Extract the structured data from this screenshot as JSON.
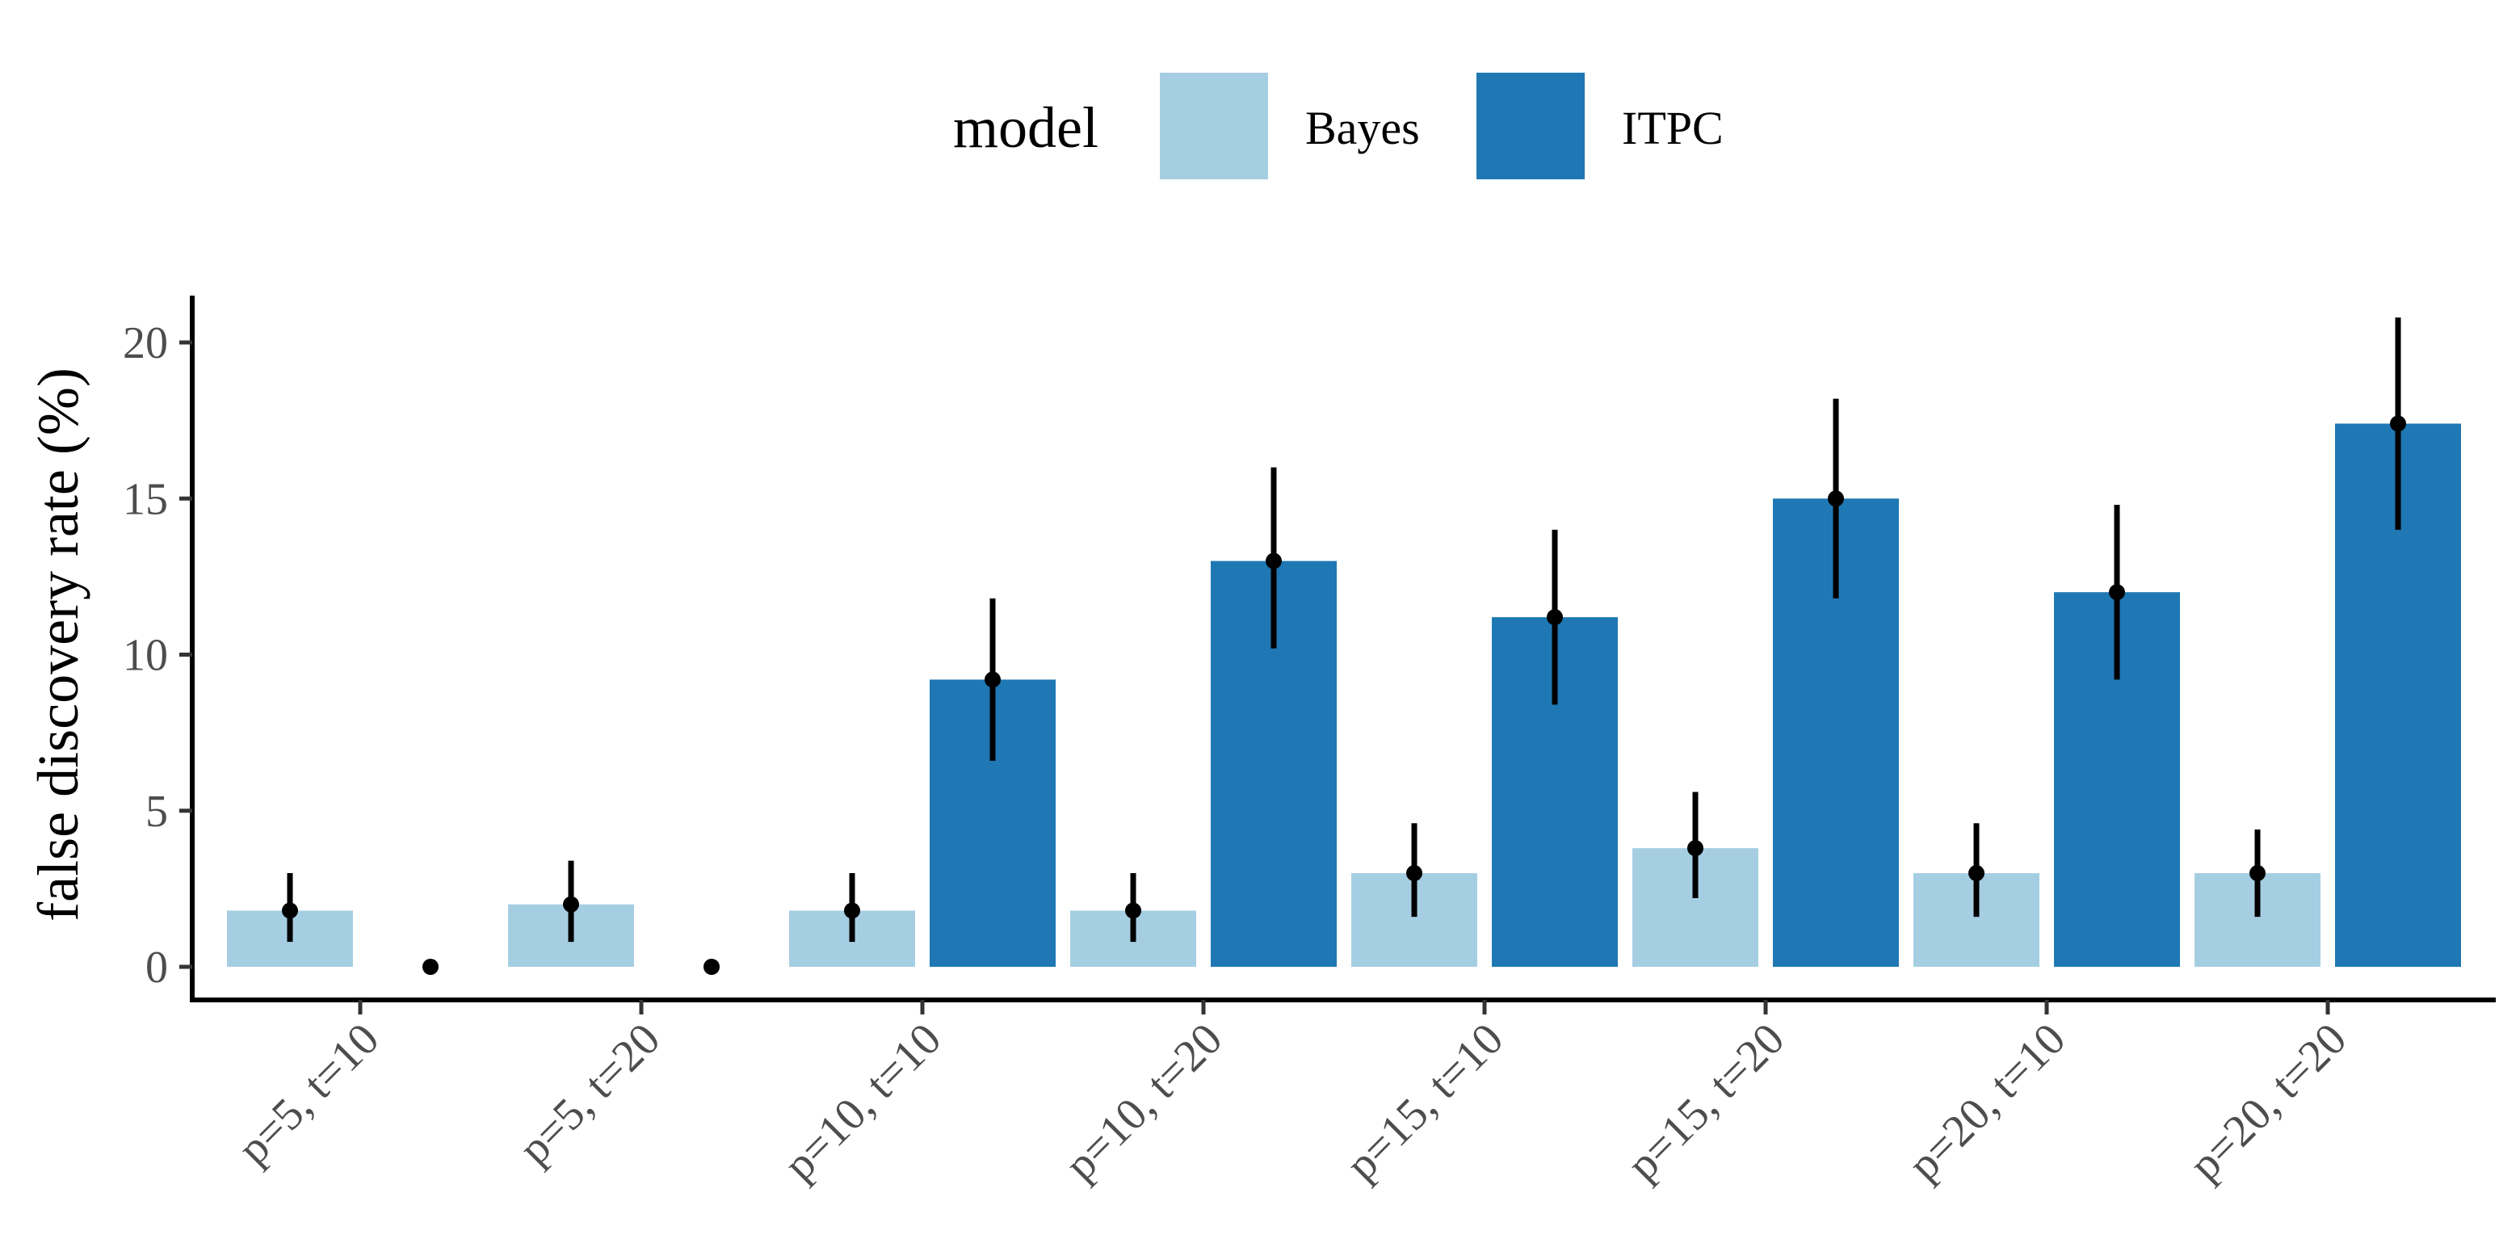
{
  "chart_data": {
    "type": "bar",
    "title": "",
    "xlabel": "",
    "ylabel": "false discovery rate (%)",
    "ylim": [
      0,
      21.5
    ],
    "yticks": [
      0,
      5,
      10,
      15,
      20
    ],
    "grid": false,
    "legend": {
      "title": "model",
      "placement": "top"
    },
    "categories": [
      "p=5, t=10",
      "p=5, t=20",
      "p=10, t=10",
      "p=10, t=20",
      "p=15, t=10",
      "p=15, t=20",
      "p=20, t=10",
      "p=20, t=20"
    ],
    "series": [
      {
        "name": "Bayes",
        "color": "#a6cee3",
        "values": [
          1.8,
          2.0,
          1.8,
          1.8,
          3.0,
          3.8,
          3.0,
          3.0
        ],
        "error_low": [
          0.8,
          0.8,
          0.8,
          0.8,
          1.6,
          2.2,
          1.6,
          1.6
        ],
        "error_high": [
          3.0,
          3.4,
          3.0,
          3.0,
          4.6,
          5.6,
          4.6,
          4.4
        ]
      },
      {
        "name": "ITPC",
        "color": "#1f78b4",
        "values": [
          0,
          0,
          9.2,
          13.0,
          11.2,
          15.0,
          12.0,
          17.4
        ],
        "error_low": [
          0,
          0,
          6.6,
          10.2,
          8.4,
          11.8,
          9.2,
          14.0
        ],
        "error_high": [
          0,
          0,
          11.8,
          16.0,
          14.0,
          18.2,
          14.8,
          20.8
        ]
      }
    ]
  }
}
